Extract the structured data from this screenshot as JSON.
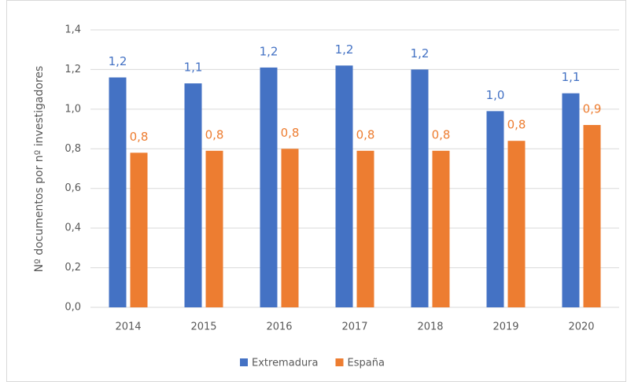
{
  "chart_data": {
    "type": "bar",
    "y_label": "Nº documentos por nº investigadores",
    "categories": [
      "2014",
      "2015",
      "2016",
      "2017",
      "2018",
      "2019",
      "2020"
    ],
    "series": [
      {
        "name": "Extremadura",
        "color": "#4472c4",
        "values": [
          1.16,
          1.13,
          1.21,
          1.22,
          1.2,
          0.99,
          1.08
        ],
        "value_labels": [
          "1,2",
          "1,1",
          "1,2",
          "1,2",
          "1,2",
          "1,0",
          "1,1"
        ]
      },
      {
        "name": "España",
        "color": "#ed7d31",
        "values": [
          0.78,
          0.79,
          0.8,
          0.79,
          0.79,
          0.84,
          0.92
        ],
        "value_labels": [
          "0,8",
          "0,8",
          "0,8",
          "0,8",
          "0,8",
          "0,8",
          "0,9"
        ]
      }
    ],
    "ylim": [
      0,
      1.4
    ],
    "yticks": [
      {
        "value": 0,
        "label": "0,0"
      },
      {
        "value": 0.2,
        "label": "0,2"
      },
      {
        "value": 0.4,
        "label": "0,4"
      },
      {
        "value": 0.6,
        "label": "0,6"
      },
      {
        "value": 0.8,
        "label": "0,8"
      },
      {
        "value": 1.0,
        "label": "1,0"
      },
      {
        "value": 1.2,
        "label": "1,2"
      },
      {
        "value": 1.4,
        "label": "1,4"
      }
    ],
    "grid": true,
    "legend": "bottom"
  }
}
